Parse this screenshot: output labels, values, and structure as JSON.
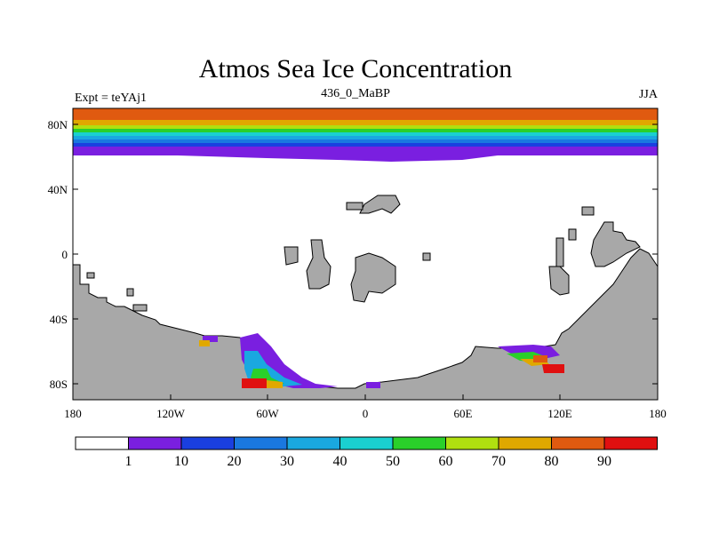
{
  "map": {
    "title": "Atmos Sea Ice Concentration",
    "left_label": "Expt = teYAj1",
    "center_label": "436_0_MaBP",
    "right_label": "JJA",
    "lon_ticks": [
      "180",
      "120W",
      "60W",
      "0",
      "60E",
      "120E",
      "180"
    ],
    "lat_ticks": [
      "80N",
      "40N",
      "0",
      "40S",
      "80S"
    ],
    "land_color": "#a8a8a8",
    "legend": {
      "labels": [
        "1",
        "10",
        "20",
        "30",
        "40",
        "50",
        "60",
        "70",
        "80",
        "90"
      ],
      "colors": [
        "#ffffff",
        "#7a1fe0",
        "#1a3fe0",
        "#1a78e0",
        "#1aa8e0",
        "#1ad0d0",
        "#2ad02a",
        "#b0e010",
        "#e0a800",
        "#e05a10",
        "#e01010"
      ]
    }
  }
}
